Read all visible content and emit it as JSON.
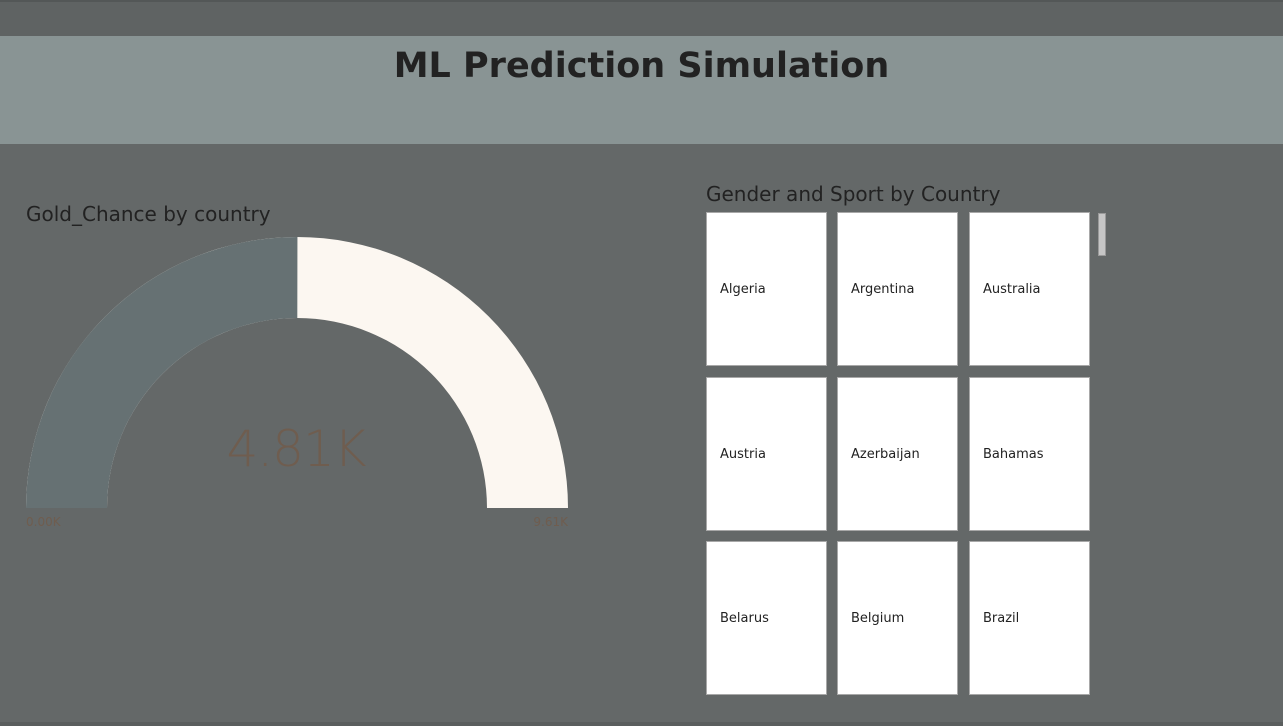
{
  "page": {
    "title": "ML Prediction Simulation"
  },
  "gauge": {
    "title": "Gold_Chance by country",
    "value_label": "4.81K",
    "min_label": "0.00K",
    "max_label": "9.61K",
    "value": 4810,
    "min": 0,
    "max": 9610,
    "fill_color": "#667173",
    "track_color": "#fcf7f1",
    "label_color": "#6f5d4f"
  },
  "slicer": {
    "title": "Gender and Sport by Country",
    "items": [
      {
        "label": "Algeria"
      },
      {
        "label": "Argentina"
      },
      {
        "label": "Australia"
      },
      {
        "label": "Austria"
      },
      {
        "label": "Azerbaijan"
      },
      {
        "label": "Bahamas"
      },
      {
        "label": "Belarus"
      },
      {
        "label": "Belgium"
      },
      {
        "label": "Brazil"
      }
    ]
  },
  "colors": {
    "background": "#646868",
    "header_band": "#899494",
    "text": "#222222"
  }
}
